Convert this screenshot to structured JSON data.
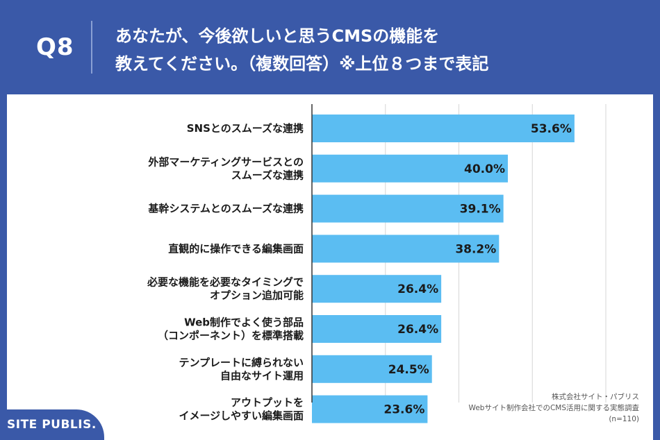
{
  "header": {
    "question_number": "Q8",
    "title_line1": "あなたが、今後欲しいと思うCMSの機能を",
    "title_line2": "教えてください。（複数回答）※上位８つまで表記"
  },
  "footer": {
    "logo_text": "SITE PUBLIS."
  },
  "source": {
    "company": "株式会社サイト・パブリス",
    "survey": "Webサイト制作会社でのCMS活用に関する実態調査",
    "sample": "(n=110)"
  },
  "colors": {
    "header_bg": "#3a59a8",
    "bar": "#5bbdf2"
  },
  "chart_data": {
    "type": "bar",
    "orientation": "horizontal",
    "title": "",
    "xlabel": "",
    "ylabel": "",
    "xlim": [
      0,
      70
    ],
    "grid": true,
    "categories": [
      [
        "SNSとのスムーズな連携"
      ],
      [
        "外部マーケティングサービスとの",
        "スムーズな連携"
      ],
      [
        "基幹システムとのスムーズな連携"
      ],
      [
        "直観的に操作できる編集画面"
      ],
      [
        "必要な機能を必要なタイミングで",
        "オプション追加可能"
      ],
      [
        "Web制作でよく使う部品",
        "（コンポーネント）を標準搭載"
      ],
      [
        "テンプレートに縛られない",
        "自由なサイト運用"
      ],
      [
        "アウトプットを",
        "イメージしやすい編集画面"
      ]
    ],
    "values": [
      53.6,
      40.0,
      39.1,
      38.2,
      26.4,
      26.4,
      24.5,
      23.6
    ],
    "value_labels": [
      "53.6%",
      "40.0%",
      "39.1%",
      "38.2%",
      "26.4%",
      "26.4%",
      "24.5%",
      "23.6%"
    ]
  }
}
